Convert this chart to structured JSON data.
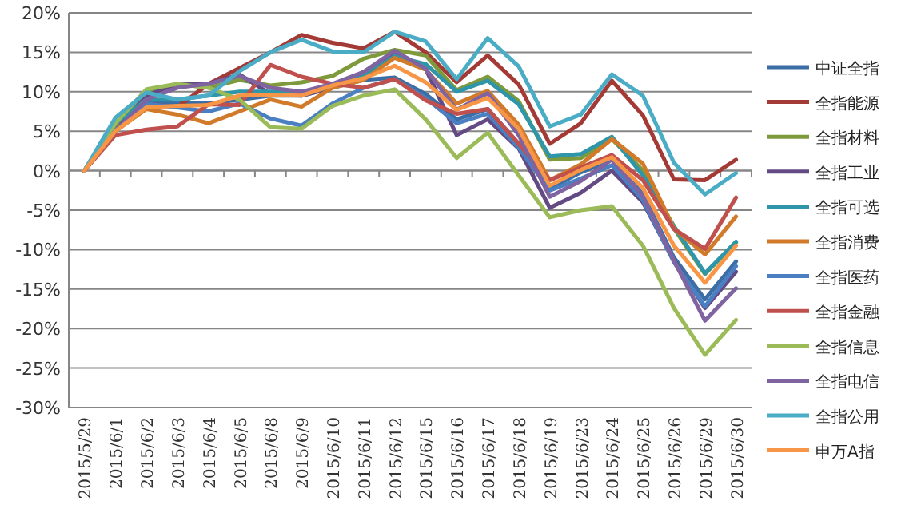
{
  "chart_data": {
    "type": "line",
    "categories": [
      "2015/5/29",
      "2015/6/1",
      "2015/6/2",
      "2015/6/3",
      "2015/6/4",
      "2015/6/5",
      "2015/6/8",
      "2015/6/9",
      "2015/6/10",
      "2015/6/11",
      "2015/6/12",
      "2015/6/15",
      "2015/6/16",
      "2015/6/17",
      "2015/6/18",
      "2015/6/19",
      "2015/6/23",
      "2015/6/24",
      "2015/6/25",
      "2015/6/26",
      "2015/6/29",
      "2015/6/30"
    ],
    "ylim": [
      -30,
      20
    ],
    "yticks": [
      {
        "value": -30,
        "label": "-30%"
      },
      {
        "value": -25,
        "label": "-25%"
      },
      {
        "value": -20,
        "label": "-20%"
      },
      {
        "value": -15,
        "label": "-15%"
      },
      {
        "value": -10,
        "label": "-10%"
      },
      {
        "value": -5,
        "label": "-5%"
      },
      {
        "value": 0,
        "label": "0%"
      },
      {
        "value": 5,
        "label": "5%"
      },
      {
        "value": 10,
        "label": "10%"
      },
      {
        "value": 15,
        "label": "15%"
      },
      {
        "value": 20,
        "label": "20%"
      }
    ],
    "grid": "y",
    "legend": "right",
    "series": [
      {
        "name": "中证全指",
        "color": "#3a6ea5",
        "values": [
          0,
          5.5,
          8.5,
          8.5,
          8.5,
          9,
          9.5,
          9.5,
          10.5,
          11.5,
          11.8,
          9.7,
          6.5,
          7.8,
          3.4,
          -2.3,
          -0.2,
          1.4,
          -3,
          -11,
          -16.3,
          -11.5
        ]
      },
      {
        "name": "全指能源",
        "color": "#a33a36",
        "values": [
          0,
          5.5,
          8.5,
          8,
          11,
          13,
          15,
          17.2,
          16.2,
          15.5,
          17.6,
          15,
          11.2,
          14.6,
          10.9,
          3.4,
          6,
          11.4,
          7,
          -1.1,
          -1.2,
          1.4
        ]
      },
      {
        "name": "全指材料",
        "color": "#7f9a3c",
        "values": [
          0,
          5.5,
          10,
          11,
          10.5,
          11.5,
          10.8,
          11.2,
          12,
          14.2,
          15.3,
          14.6,
          10.2,
          11.9,
          8.8,
          1.4,
          1.6,
          4,
          0,
          -7.3,
          -13.1,
          -9.1
        ]
      },
      {
        "name": "全指工业",
        "color": "#634a85",
        "values": [
          0,
          5,
          9.5,
          11,
          11,
          12.2,
          9.7,
          9.5,
          10.5,
          12.5,
          15,
          12.9,
          4.5,
          6.5,
          2.8,
          -4.7,
          -2.8,
          0,
          -4,
          -11.4,
          -17.4,
          -12.8
        ]
      },
      {
        "name": "全指可选",
        "color": "#2f95a9",
        "values": [
          0,
          6,
          9,
          9,
          9.5,
          10,
          10,
          10,
          10.5,
          12,
          14.5,
          13.5,
          10,
          11.4,
          8.4,
          1.8,
          2.1,
          4.3,
          -0.6,
          -7,
          -13,
          -9
        ]
      },
      {
        "name": "全指消费",
        "color": "#d17a2a",
        "values": [
          0,
          5,
          7.8,
          7.1,
          6,
          7.5,
          9,
          8.1,
          10.5,
          11.5,
          14.3,
          12.8,
          8.5,
          10.1,
          5.8,
          -1.2,
          0.8,
          4,
          0.9,
          -7.3,
          -10.6,
          -5.8
        ]
      },
      {
        "name": "全指医药",
        "color": "#4a7fc1",
        "values": [
          0,
          5,
          8.5,
          8,
          7.5,
          8.5,
          6.6,
          5.7,
          8.5,
          10.5,
          11.6,
          9.2,
          6,
          7.2,
          2.9,
          -2.5,
          -1,
          0.7,
          -3.7,
          -11.6,
          -17.2,
          -12.1
        ]
      },
      {
        "name": "全指金融",
        "color": "#c0504d",
        "values": [
          0,
          4.5,
          5.2,
          5.6,
          8.4,
          8.3,
          13.4,
          11.9,
          11,
          10.5,
          11.6,
          8.9,
          7.2,
          7.8,
          3.4,
          -1.2,
          0.4,
          2,
          -1.2,
          -7.4,
          -9.9,
          -3.4
        ]
      },
      {
        "name": "全指信息",
        "color": "#9bbb59",
        "values": [
          0,
          6,
          10.3,
          11,
          10.5,
          9,
          5.5,
          5.3,
          8.2,
          9.5,
          10.3,
          6.5,
          1.6,
          4.8,
          -0.6,
          -5.9,
          -5,
          -4.5,
          -9.5,
          -17.4,
          -23.3,
          -18.9
        ]
      },
      {
        "name": "全指电信",
        "color": "#8064a2",
        "values": [
          0,
          5,
          9,
          10.5,
          11,
          12,
          10.5,
          10,
          11,
          12.5,
          15.2,
          12.9,
          7.7,
          9.8,
          4.5,
          -3.3,
          -1.3,
          1.4,
          -3.2,
          -11.4,
          -19,
          -14.9
        ]
      },
      {
        "name": "全指公用",
        "color": "#4bacc6",
        "values": [
          0,
          6.7,
          9.9,
          9,
          9.5,
          12.6,
          15,
          16.6,
          15.1,
          15,
          17.6,
          16.4,
          11.6,
          16.8,
          13.2,
          5.6,
          7.1,
          12.2,
          9.5,
          1,
          -3,
          -0.3
        ]
      },
      {
        "name": "申万A指",
        "color": "#f79646",
        "values": [
          0,
          5,
          8,
          8.2,
          8.3,
          9.5,
          9.6,
          9.5,
          10.8,
          11.7,
          13.3,
          11.2,
          7.7,
          9.2,
          5.3,
          -1.9,
          0.1,
          1.7,
          -2.2,
          -9.5,
          -14.2,
          -9.5
        ]
      }
    ]
  }
}
